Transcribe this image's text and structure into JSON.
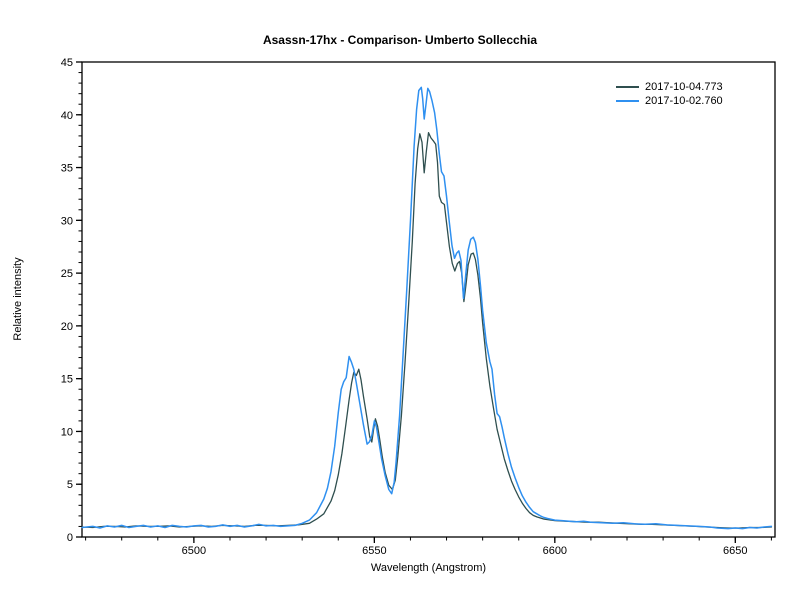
{
  "chart_data": {
    "type": "line",
    "title": "Asassn-17hx - Comparison- Umberto Sollecchia",
    "xlabel": "Wavelength (Angstrom)",
    "ylabel": "Relative intensity",
    "xlim": [
      6469,
      6661
    ],
    "ylim": [
      0,
      45
    ],
    "xticks": [
      6500,
      6550,
      6600,
      6650
    ],
    "yticks": [
      0,
      5,
      10,
      15,
      20,
      25,
      30,
      35,
      40,
      45
    ],
    "x_minor_step": 10,
    "y_minor_step": 1,
    "grid": false,
    "legend_position": "top-right-inside",
    "frame_color": "#000000",
    "background_color": "#ffffff",
    "series": [
      {
        "name": "2017-10-04.773",
        "color": "#2f4f4f",
        "width": 1.3,
        "points": [
          [
            6469,
            0.95
          ],
          [
            6472,
            0.9
          ],
          [
            6475,
            1.0
          ],
          [
            6478,
            1.0
          ],
          [
            6481,
            0.95
          ],
          [
            6484,
            1.05
          ],
          [
            6487,
            1.0
          ],
          [
            6490,
            1.0
          ],
          [
            6493,
            1.05
          ],
          [
            6496,
            0.95
          ],
          [
            6499,
            1.0
          ],
          [
            6502,
            1.05
          ],
          [
            6505,
            1.0
          ],
          [
            6508,
            1.1
          ],
          [
            6511,
            1.05
          ],
          [
            6514,
            1.0
          ],
          [
            6517,
            1.1
          ],
          [
            6520,
            1.1
          ],
          [
            6523,
            1.05
          ],
          [
            6526,
            1.1
          ],
          [
            6529,
            1.15
          ],
          [
            6532,
            1.3
          ],
          [
            6534,
            1.7
          ],
          [
            6536,
            2.2
          ],
          [
            6538,
            3.4
          ],
          [
            6539,
            4.4
          ],
          [
            6540,
            5.9
          ],
          [
            6541,
            7.9
          ],
          [
            6542,
            10.4
          ],
          [
            6543,
            13.0
          ],
          [
            6543.7,
            14.6
          ],
          [
            6544.3,
            15.6
          ],
          [
            6545,
            15.3
          ],
          [
            6545.7,
            15.9
          ],
          [
            6546.3,
            14.9
          ],
          [
            6547,
            13.3
          ],
          [
            6548,
            11.2
          ],
          [
            6548.7,
            9.5
          ],
          [
            6549.3,
            9.0
          ],
          [
            6549.8,
            10.2
          ],
          [
            6550.3,
            11.2
          ],
          [
            6550.9,
            10.5
          ],
          [
            6551.5,
            9.2
          ],
          [
            6552.2,
            7.6
          ],
          [
            6553,
            6.1
          ],
          [
            6554,
            4.9
          ],
          [
            6555,
            4.5
          ],
          [
            6555.8,
            5.4
          ],
          [
            6556.5,
            7.6
          ],
          [
            6557.5,
            11.5
          ],
          [
            6558.5,
            16.5
          ],
          [
            6559.5,
            22.0
          ],
          [
            6560.5,
            28.0
          ],
          [
            6561.3,
            33.5
          ],
          [
            6562,
            36.8
          ],
          [
            6562.6,
            38.2
          ],
          [
            6563.2,
            37.4
          ],
          [
            6563.8,
            34.5
          ],
          [
            6564.4,
            36.5
          ],
          [
            6565,
            38.3
          ],
          [
            6565.7,
            37.8
          ],
          [
            6566.4,
            37.5
          ],
          [
            6567,
            37.2
          ],
          [
            6567.5,
            35.5
          ],
          [
            6568,
            32.3
          ],
          [
            6568.6,
            31.7
          ],
          [
            6569.4,
            31.5
          ],
          [
            6570,
            29.8
          ],
          [
            6570.8,
            27.5
          ],
          [
            6571.6,
            25.9
          ],
          [
            6572.3,
            25.2
          ],
          [
            6573,
            25.9
          ],
          [
            6573.6,
            26.1
          ],
          [
            6574.2,
            25.0
          ],
          [
            6574.8,
            22.3
          ],
          [
            6575.4,
            23.9
          ],
          [
            6576,
            25.8
          ],
          [
            6576.8,
            26.8
          ],
          [
            6577.4,
            26.9
          ],
          [
            6578,
            26.3
          ],
          [
            6578.7,
            24.8
          ],
          [
            6579.4,
            22.6
          ],
          [
            6580,
            20.3
          ],
          [
            6581,
            16.9
          ],
          [
            6582,
            14.3
          ],
          [
            6583,
            12.2
          ],
          [
            6584,
            10.2
          ],
          [
            6585,
            8.8
          ],
          [
            6586,
            7.4
          ],
          [
            6587,
            6.3
          ],
          [
            6588,
            5.3
          ],
          [
            6589,
            4.5
          ],
          [
            6590,
            3.8
          ],
          [
            6591,
            3.2
          ],
          [
            6592,
            2.7
          ],
          [
            6593,
            2.3
          ],
          [
            6594,
            2.05
          ],
          [
            6595,
            1.9
          ],
          [
            6596,
            1.8
          ],
          [
            6597,
            1.7
          ],
          [
            6598,
            1.65
          ],
          [
            6600,
            1.55
          ],
          [
            6603,
            1.5
          ],
          [
            6606,
            1.45
          ],
          [
            6609,
            1.4
          ],
          [
            6612,
            1.4
          ],
          [
            6615,
            1.35
          ],
          [
            6618,
            1.3
          ],
          [
            6621,
            1.25
          ],
          [
            6624,
            1.2
          ],
          [
            6627,
            1.2
          ],
          [
            6630,
            1.15
          ],
          [
            6633,
            1.1
          ],
          [
            6636,
            1.05
          ],
          [
            6639,
            1.0
          ],
          [
            6642,
            0.95
          ],
          [
            6645,
            0.9
          ],
          [
            6648,
            0.85
          ],
          [
            6651,
            0.85
          ],
          [
            6654,
            0.9
          ],
          [
            6657,
            0.9
          ],
          [
            6660,
            0.95
          ]
        ]
      },
      {
        "name": "2017-10-02.760",
        "color": "#2f90f0",
        "width": 1.5,
        "points": [
          [
            6469,
            0.9
          ],
          [
            6472,
            1.0
          ],
          [
            6474,
            0.85
          ],
          [
            6476,
            1.05
          ],
          [
            6478,
            0.95
          ],
          [
            6480,
            1.1
          ],
          [
            6482,
            0.9
          ],
          [
            6484,
            1.0
          ],
          [
            6486,
            1.1
          ],
          [
            6488,
            0.95
          ],
          [
            6490,
            1.05
          ],
          [
            6492,
            0.9
          ],
          [
            6494,
            1.1
          ],
          [
            6496,
            1.0
          ],
          [
            6498,
            0.95
          ],
          [
            6500,
            1.05
          ],
          [
            6502,
            1.1
          ],
          [
            6504,
            0.95
          ],
          [
            6506,
            1.0
          ],
          [
            6508,
            1.15
          ],
          [
            6510,
            1.0
          ],
          [
            6512,
            1.1
          ],
          [
            6514,
            0.95
          ],
          [
            6516,
            1.05
          ],
          [
            6518,
            1.2
          ],
          [
            6520,
            1.05
          ],
          [
            6522,
            1.1
          ],
          [
            6524,
            1.0
          ],
          [
            6526,
            1.05
          ],
          [
            6528,
            1.1
          ],
          [
            6530,
            1.3
          ],
          [
            6532,
            1.6
          ],
          [
            6534,
            2.3
          ],
          [
            6536,
            3.6
          ],
          [
            6537,
            4.6
          ],
          [
            6538,
            6.2
          ],
          [
            6539,
            8.6
          ],
          [
            6540,
            11.8
          ],
          [
            6540.8,
            14.0
          ],
          [
            6541.5,
            14.7
          ],
          [
            6542.2,
            15.1
          ],
          [
            6543,
            17.1
          ],
          [
            6543.6,
            16.6
          ],
          [
            6544.3,
            15.9
          ],
          [
            6545,
            14.6
          ],
          [
            6546,
            12.6
          ],
          [
            6547,
            10.6
          ],
          [
            6548,
            8.8
          ],
          [
            6548.6,
            9.0
          ],
          [
            6549.3,
            9.6
          ],
          [
            6550,
            11.0
          ],
          [
            6550.6,
            10.4
          ],
          [
            6551.3,
            8.9
          ],
          [
            6552,
            7.4
          ],
          [
            6553,
            5.8
          ],
          [
            6554,
            4.5
          ],
          [
            6554.8,
            4.1
          ],
          [
            6555.5,
            5.2
          ],
          [
            6556,
            7.0
          ],
          [
            6557,
            11.5
          ],
          [
            6558,
            17.5
          ],
          [
            6559,
            23.5
          ],
          [
            6560,
            30.0
          ],
          [
            6561,
            37.0
          ],
          [
            6561.7,
            40.5
          ],
          [
            6562.3,
            42.3
          ],
          [
            6563,
            42.6
          ],
          [
            6563.4,
            41.5
          ],
          [
            6563.8,
            39.6
          ],
          [
            6564.3,
            41.0
          ],
          [
            6564.8,
            42.5
          ],
          [
            6565.3,
            42.2
          ],
          [
            6566,
            41.3
          ],
          [
            6566.7,
            40.2
          ],
          [
            6567.3,
            38.6
          ],
          [
            6568,
            36.3
          ],
          [
            6568.6,
            34.6
          ],
          [
            6569.3,
            34.2
          ],
          [
            6570,
            32.3
          ],
          [
            6570.7,
            30.0
          ],
          [
            6571.5,
            27.6
          ],
          [
            6572.2,
            26.4
          ],
          [
            6572.8,
            26.9
          ],
          [
            6573.4,
            27.1
          ],
          [
            6574,
            26.2
          ],
          [
            6574.7,
            22.6
          ],
          [
            6575.3,
            24.8
          ],
          [
            6576,
            27.2
          ],
          [
            6576.7,
            28.2
          ],
          [
            6577.4,
            28.4
          ],
          [
            6578,
            27.9
          ],
          [
            6578.7,
            26.3
          ],
          [
            6579.4,
            23.8
          ],
          [
            6580,
            21.5
          ],
          [
            6581,
            18.4
          ],
          [
            6582,
            16.6
          ],
          [
            6582.6,
            15.9
          ],
          [
            6583.3,
            13.5
          ],
          [
            6584,
            11.7
          ],
          [
            6584.7,
            11.4
          ],
          [
            6585.4,
            10.4
          ],
          [
            6586,
            9.4
          ],
          [
            6587,
            7.9
          ],
          [
            6588,
            6.6
          ],
          [
            6589,
            5.6
          ],
          [
            6590,
            4.7
          ],
          [
            6591,
            3.9
          ],
          [
            6592,
            3.3
          ],
          [
            6593,
            2.8
          ],
          [
            6594,
            2.4
          ],
          [
            6595,
            2.2
          ],
          [
            6596,
            2.0
          ],
          [
            6597,
            1.85
          ],
          [
            6598,
            1.75
          ],
          [
            6600,
            1.6
          ],
          [
            6602,
            1.55
          ],
          [
            6604,
            1.5
          ],
          [
            6606,
            1.45
          ],
          [
            6608,
            1.5
          ],
          [
            6610,
            1.4
          ],
          [
            6613,
            1.35
          ],
          [
            6616,
            1.3
          ],
          [
            6619,
            1.35
          ],
          [
            6622,
            1.25
          ],
          [
            6625,
            1.2
          ],
          [
            6628,
            1.25
          ],
          [
            6631,
            1.15
          ],
          [
            6634,
            1.1
          ],
          [
            6637,
            1.05
          ],
          [
            6640,
            1.0
          ],
          [
            6643,
            0.95
          ],
          [
            6645,
            0.85
          ],
          [
            6648,
            0.8
          ],
          [
            6650,
            0.85
          ],
          [
            6652,
            0.8
          ],
          [
            6654,
            0.9
          ],
          [
            6656,
            0.85
          ],
          [
            6658,
            0.95
          ],
          [
            6660,
            1.0
          ]
        ]
      }
    ],
    "legend": [
      {
        "label": "2017-10-04.773",
        "color": "#2f4f4f"
      },
      {
        "label": "2017-10-02.760",
        "color": "#2f90f0"
      }
    ]
  }
}
